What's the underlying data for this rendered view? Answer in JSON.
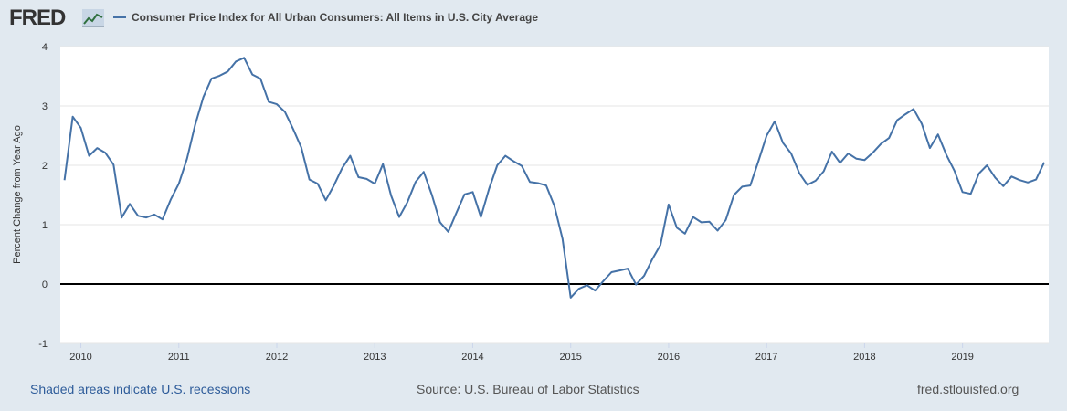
{
  "header": {
    "logo_text": "FRED",
    "legend_label": "Consumer Price Index for All Urban Consumers: All Items in U.S. City Average"
  },
  "footer": {
    "recessions_link": "Shaded areas indicate U.S. recessions",
    "source": "Source: U.S. Bureau of Labor Statistics",
    "site": "fred.stlouisfed.org"
  },
  "colors": {
    "series": "#4572a7",
    "background": "#e1e9f0",
    "plot": "#ffffff",
    "grid": "#e6e6e6",
    "zero_line": "#000000"
  },
  "chart_data": {
    "type": "line",
    "title": "",
    "xlabel": "",
    "ylabel": "Percent Change from Year Ago",
    "ylim": [
      -1,
      4
    ],
    "yticks": [
      -1,
      0,
      1,
      2,
      3,
      4
    ],
    "xlim": [
      2009.79,
      2019.88
    ],
    "xticks": [
      2010,
      2011,
      2012,
      2013,
      2014,
      2015,
      2016,
      2017,
      2018,
      2019
    ],
    "grid": true,
    "legend_position": "top",
    "series": [
      {
        "name": "Consumer Price Index for All Urban Consumers: All Items in U.S. City Average",
        "x_start": "2009-11",
        "frequency": "monthly",
        "values": [
          1.75,
          2.82,
          2.63,
          2.16,
          2.29,
          2.21,
          2.01,
          1.12,
          1.35,
          1.15,
          1.12,
          1.17,
          1.09,
          1.42,
          1.69,
          2.11,
          2.68,
          3.15,
          3.46,
          3.51,
          3.58,
          3.75,
          3.81,
          3.53,
          3.46,
          3.07,
          3.03,
          2.9,
          2.61,
          2.3,
          1.76,
          1.69,
          1.41,
          1.66,
          1.95,
          2.16,
          1.8,
          1.77,
          1.69,
          2.02,
          1.49,
          1.13,
          1.38,
          1.72,
          1.89,
          1.5,
          1.04,
          0.88,
          1.2,
          1.51,
          1.55,
          1.13,
          1.6,
          2.0,
          2.16,
          2.07,
          1.99,
          1.72,
          1.7,
          1.66,
          1.32,
          0.76,
          -0.23,
          -0.08,
          -0.02,
          -0.11,
          0.05,
          0.2,
          0.23,
          0.26,
          -0.01,
          0.14,
          0.42,
          0.66,
          1.34,
          0.95,
          0.85,
          1.13,
          1.04,
          1.05,
          0.9,
          1.08,
          1.5,
          1.64,
          1.66,
          2.07,
          2.5,
          2.74,
          2.38,
          2.2,
          1.87,
          1.67,
          1.74,
          1.9,
          2.23,
          2.04,
          2.2,
          2.11,
          2.09,
          2.21,
          2.36,
          2.46,
          2.76,
          2.86,
          2.95,
          2.7,
          2.29,
          2.52,
          2.18,
          1.91,
          1.55,
          1.52,
          1.86,
          2.0,
          1.79,
          1.65,
          1.81,
          1.75,
          1.71,
          1.76,
          2.05
        ]
      }
    ]
  }
}
